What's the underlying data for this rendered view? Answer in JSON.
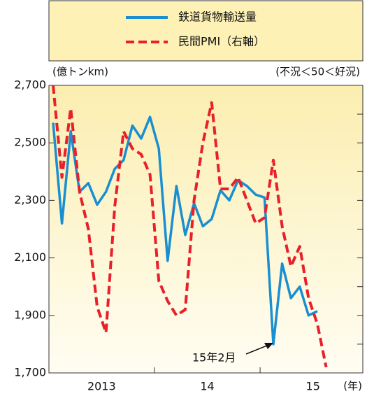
{
  "chart_data": {
    "type": "line",
    "y_label": "(億トンkm)",
    "y2_label": "(不況＜50＜好況)",
    "x_unit": "(年)",
    "year_labels": [
      "2013",
      "14",
      "15"
    ],
    "annotation": "15年2月",
    "ylim": [
      1700,
      2700
    ],
    "yticks": [
      {
        "value": 1700,
        "label": "1,700"
      },
      {
        "value": 1900,
        "label": "1,900"
      },
      {
        "value": 2100,
        "label": "2,100"
      },
      {
        "value": 2300,
        "label": "2,300"
      },
      {
        "value": 2500,
        "label": "2,500"
      },
      {
        "value": 2700,
        "label": "2,700"
      }
    ],
    "y2lim": [
      47,
      52
    ],
    "y2ticks": [
      47.5,
      48,
      48.5,
      49,
      49.5,
      50,
      50.5,
      51,
      51.5
    ],
    "series": [
      {
        "name": "鉄道貨物輸送量",
        "color": "#1a8fd0",
        "dash": false,
        "values": [
          2570,
          2220,
          2540,
          2330,
          2360,
          2285,
          2330,
          2410,
          2440,
          2560,
          2515,
          2590,
          2480,
          2090,
          2350,
          2180,
          2290,
          2210,
          2235,
          2335,
          2300,
          2370,
          2350,
          2320,
          2310,
          1800,
          2080,
          1960,
          2000,
          1900,
          1915
        ]
      },
      {
        "name": "民間PMI（右軸）",
        "color": "#e8202a",
        "dash": true,
        "axis": "y2",
        "values": [
          52.0,
          50.4,
          51.6,
          50.15,
          49.5,
          48.15,
          47.7,
          49.9,
          51.2,
          50.9,
          50.8,
          50.45,
          48.6,
          48.25,
          48.0,
          48.1,
          50.0,
          51.0,
          51.7,
          50.2,
          50.2,
          50.4,
          50.0,
          49.6,
          49.7,
          50.7,
          49.55,
          48.85,
          49.2,
          48.3,
          47.85,
          47.1
        ]
      }
    ]
  }
}
